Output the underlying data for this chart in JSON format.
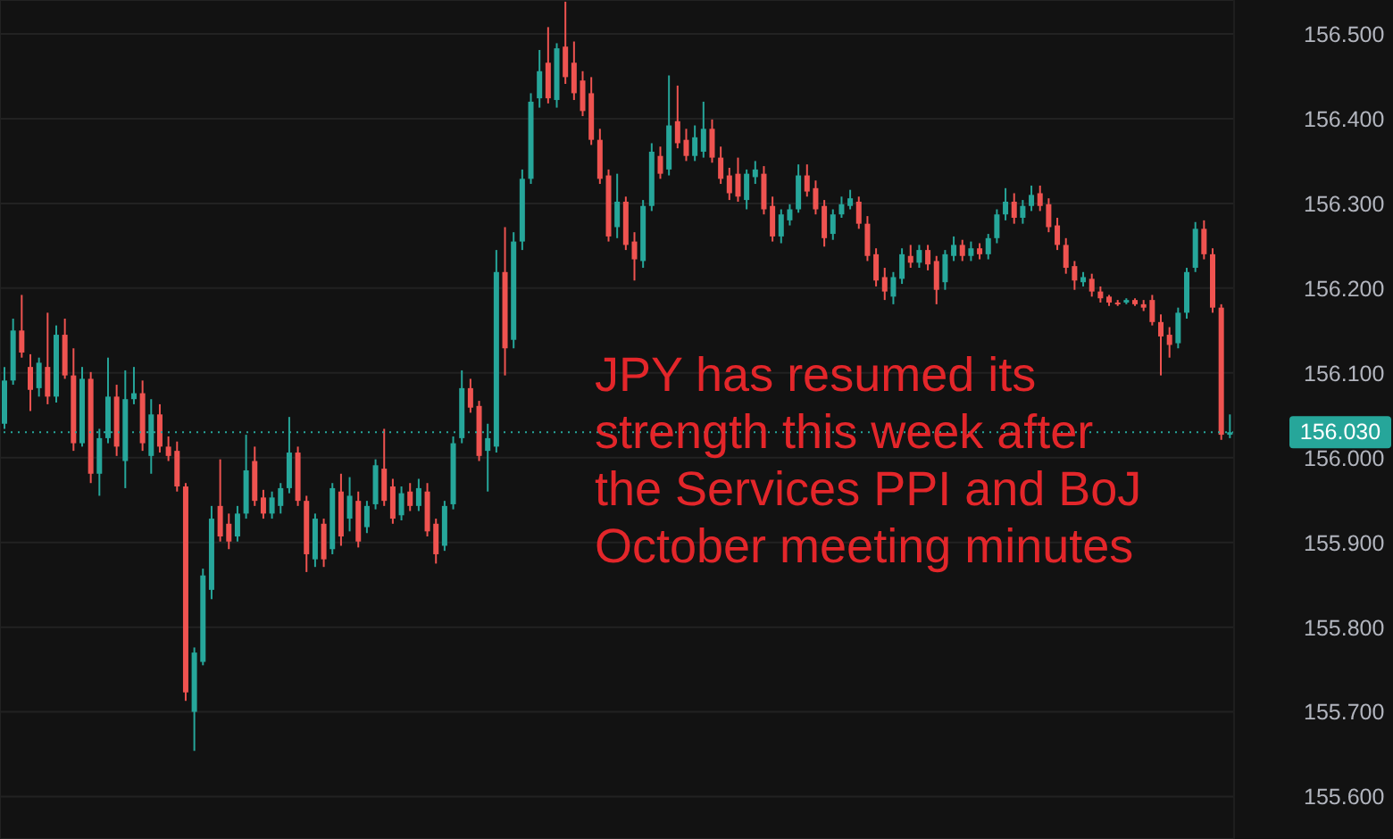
{
  "chart_data": {
    "type": "candlestick",
    "categories": [
      null,
      null,
      null,
      null,
      null,
      null,
      null,
      null,
      null,
      null,
      null,
      null,
      null,
      null,
      null,
      null,
      null,
      null,
      null,
      null,
      null,
      null,
      null,
      null,
      null,
      null,
      null,
      null,
      null,
      null,
      null,
      null,
      null,
      null,
      null,
      null,
      null,
      null,
      null,
      null,
      null,
      null,
      null,
      null,
      null,
      null,
      null,
      null,
      null,
      null,
      null,
      null,
      null,
      null,
      null,
      null,
      null,
      null,
      null,
      null,
      null,
      null,
      null,
      null,
      null,
      null,
      null,
      null,
      null,
      null,
      null,
      null,
      null,
      null,
      null,
      null,
      null,
      null,
      null,
      null,
      null,
      null,
      null,
      null,
      null,
      null,
      null,
      null,
      null,
      null,
      null,
      null,
      null,
      null,
      null,
      null,
      null,
      null,
      null,
      null,
      null,
      null,
      null,
      null,
      null,
      null,
      null,
      null,
      null,
      null,
      null,
      null,
      null,
      null,
      null,
      null,
      null,
      null,
      null,
      null,
      null,
      null,
      null,
      null,
      null,
      null,
      null,
      null,
      null,
      null,
      null,
      null,
      null,
      null,
      null,
      null,
      null,
      null,
      null,
      null,
      null,
      null,
      null
    ],
    "ohlc": [
      [
        156.04,
        156.107,
        156.034,
        156.091
      ],
      [
        156.091,
        156.164,
        156.086,
        156.15
      ],
      [
        156.15,
        156.192,
        156.118,
        156.124
      ],
      [
        156.107,
        156.122,
        156.055,
        156.08
      ],
      [
        156.082,
        156.118,
        156.072,
        156.112
      ],
      [
        156.107,
        156.171,
        156.063,
        156.072
      ],
      [
        156.072,
        156.156,
        156.065,
        156.145
      ],
      [
        156.145,
        156.164,
        156.093,
        156.097
      ],
      [
        156.097,
        156.129,
        156.008,
        156.017
      ],
      [
        156.017,
        156.107,
        156.013,
        156.093
      ],
      [
        156.093,
        156.101,
        155.97,
        155.981
      ],
      [
        155.981,
        156.034,
        155.955,
        156.023
      ],
      [
        156.023,
        156.118,
        156.017,
        156.072
      ],
      [
        156.072,
        156.086,
        156.002,
        156.013
      ],
      [
        155.996,
        156.103,
        155.964,
        156.069
      ],
      [
        156.069,
        156.107,
        156.063,
        156.076
      ],
      [
        156.076,
        156.091,
        156.008,
        156.017
      ],
      [
        156.002,
        156.069,
        155.981,
        156.051
      ],
      [
        156.051,
        156.063,
        156.006,
        156.013
      ],
      [
        156.013,
        156.025,
        155.996,
        156.002
      ],
      [
        156.008,
        156.019,
        155.96,
        155.966
      ],
      [
        155.966,
        155.97,
        155.713,
        155.723
      ],
      [
        155.7,
        155.776,
        155.654,
        155.77
      ],
      [
        155.759,
        155.869,
        155.755,
        155.861
      ],
      [
        155.844,
        155.943,
        155.833,
        155.928
      ],
      [
        155.943,
        155.998,
        155.901,
        155.907
      ],
      [
        155.922,
        155.934,
        155.892,
        155.901
      ],
      [
        155.907,
        155.943,
        155.901,
        155.934
      ],
      [
        155.934,
        156.027,
        155.928,
        155.985
      ],
      [
        155.996,
        156.013,
        155.943,
        155.949
      ],
      [
        155.953,
        155.962,
        155.928,
        155.934
      ],
      [
        155.934,
        155.96,
        155.928,
        155.953
      ],
      [
        155.943,
        155.97,
        155.934,
        155.964
      ],
      [
        155.964,
        156.048,
        155.958,
        156.006
      ],
      [
        156.006,
        156.013,
        155.943,
        155.949
      ],
      [
        155.949,
        155.955,
        155.865,
        155.886
      ],
      [
        155.88,
        155.934,
        155.871,
        155.928
      ],
      [
        155.922,
        155.928,
        155.871,
        155.88
      ],
      [
        155.892,
        155.97,
        155.886,
        155.964
      ],
      [
        155.96,
        155.981,
        155.896,
        155.907
      ],
      [
        155.928,
        155.977,
        155.913,
        155.955
      ],
      [
        155.949,
        155.96,
        155.894,
        155.901
      ],
      [
        155.918,
        155.949,
        155.911,
        155.943
      ],
      [
        155.945,
        155.998,
        155.939,
        155.991
      ],
      [
        155.987,
        156.034,
        155.943,
        155.949
      ],
      [
        155.966,
        155.975,
        155.922,
        155.928
      ],
      [
        155.932,
        155.966,
        155.926,
        155.958
      ],
      [
        155.96,
        155.97,
        155.937,
        155.943
      ],
      [
        155.943,
        155.975,
        155.937,
        155.964
      ],
      [
        155.96,
        155.97,
        155.907,
        155.913
      ],
      [
        155.922,
        155.928,
        155.875,
        155.886
      ],
      [
        155.896,
        155.949,
        155.89,
        155.943
      ],
      [
        155.945,
        156.025,
        155.939,
        156.017
      ],
      [
        156.023,
        156.103,
        156.017,
        156.082
      ],
      [
        156.082,
        156.093,
        156.053,
        156.059
      ],
      [
        156.061,
        156.067,
        155.996,
        156.002
      ],
      [
        156.008,
        156.04,
        155.96,
        156.023
      ],
      [
        156.013,
        156.245,
        156.006,
        156.219
      ],
      [
        156.219,
        156.272,
        156.097,
        156.129
      ],
      [
        156.139,
        156.266,
        156.129,
        156.255
      ],
      [
        156.255,
        156.34,
        156.245,
        156.329
      ],
      [
        156.329,
        156.43,
        156.323,
        156.42
      ],
      [
        156.424,
        156.481,
        156.413,
        156.456
      ],
      [
        156.466,
        156.508,
        156.418,
        156.424
      ],
      [
        156.422,
        156.489,
        156.413,
        156.483
      ],
      [
        156.485,
        156.538,
        156.441,
        156.449
      ],
      [
        156.466,
        156.491,
        156.422,
        156.43
      ],
      [
        156.445,
        156.456,
        156.403,
        156.409
      ],
      [
        156.43,
        156.449,
        156.369,
        156.375
      ],
      [
        156.375,
        156.388,
        156.323,
        156.329
      ],
      [
        156.333,
        156.34,
        156.255,
        156.261
      ],
      [
        156.272,
        156.335,
        156.259,
        156.302
      ],
      [
        156.302,
        156.308,
        156.245,
        156.251
      ],
      [
        156.255,
        156.266,
        156.209,
        156.234
      ],
      [
        156.232,
        156.304,
        156.224,
        156.297
      ],
      [
        156.297,
        156.371,
        156.291,
        156.361
      ],
      [
        156.356,
        156.367,
        156.329,
        156.335
      ],
      [
        156.34,
        156.451,
        156.333,
        156.392
      ],
      [
        156.397,
        156.439,
        156.365,
        156.371
      ],
      [
        156.375,
        156.388,
        156.35,
        156.356
      ],
      [
        156.356,
        156.392,
        156.35,
        156.378
      ],
      [
        156.361,
        156.42,
        156.354,
        156.388
      ],
      [
        156.388,
        156.399,
        156.348,
        156.354
      ],
      [
        156.354,
        156.367,
        156.323,
        156.329
      ],
      [
        156.333,
        156.342,
        156.304,
        156.312
      ],
      [
        156.335,
        156.354,
        156.302,
        156.308
      ],
      [
        156.304,
        156.34,
        156.293,
        156.335
      ],
      [
        156.331,
        156.35,
        156.323,
        156.34
      ],
      [
        156.335,
        156.344,
        156.287,
        156.293
      ],
      [
        156.297,
        156.308,
        156.255,
        156.261
      ],
      [
        156.261,
        156.293,
        156.253,
        156.287
      ],
      [
        156.28,
        156.299,
        156.274,
        156.293
      ],
      [
        156.293,
        156.346,
        156.289,
        156.333
      ],
      [
        156.333,
        156.346,
        156.308,
        156.314
      ],
      [
        156.318,
        156.327,
        156.287,
        156.293
      ],
      [
        156.297,
        156.304,
        156.249,
        156.259
      ],
      [
        156.264,
        156.293,
        156.257,
        156.287
      ],
      [
        156.287,
        156.308,
        156.283,
        156.299
      ],
      [
        156.297,
        156.316,
        156.293,
        156.306
      ],
      [
        156.302,
        156.308,
        156.27,
        156.276
      ],
      [
        156.276,
        156.285,
        156.232,
        156.238
      ],
      [
        156.24,
        156.247,
        156.202,
        156.209
      ],
      [
        156.213,
        156.224,
        156.186,
        156.196
      ],
      [
        156.19,
        156.219,
        156.181,
        156.213
      ],
      [
        156.211,
        156.247,
        156.205,
        156.24
      ],
      [
        156.238,
        156.251,
        156.224,
        156.23
      ],
      [
        156.23,
        156.251,
        156.224,
        156.245
      ],
      [
        156.245,
        156.251,
        156.221,
        156.228
      ],
      [
        156.232,
        156.238,
        156.181,
        156.198
      ],
      [
        156.207,
        156.245,
        156.198,
        156.24
      ],
      [
        156.238,
        156.261,
        156.232,
        156.251
      ],
      [
        156.251,
        156.257,
        156.232,
        156.238
      ],
      [
        156.238,
        156.255,
        156.232,
        156.247
      ],
      [
        156.247,
        156.253,
        156.234,
        156.24
      ],
      [
        156.24,
        156.264,
        156.234,
        156.259
      ],
      [
        156.259,
        156.293,
        156.253,
        156.287
      ],
      [
        156.287,
        156.318,
        156.28,
        156.302
      ],
      [
        156.302,
        156.312,
        156.276,
        156.283
      ],
      [
        156.283,
        156.304,
        156.276,
        156.297
      ],
      [
        156.297,
        156.321,
        156.291,
        156.31
      ],
      [
        156.312,
        156.321,
        156.291,
        156.297
      ],
      [
        156.299,
        156.306,
        156.266,
        156.272
      ],
      [
        156.274,
        156.283,
        156.245,
        156.251
      ],
      [
        156.251,
        156.259,
        156.217,
        156.224
      ],
      [
        156.226,
        156.232,
        156.198,
        156.209
      ],
      [
        156.207,
        156.219,
        156.202,
        156.213
      ],
      [
        156.211,
        156.217,
        156.19,
        156.196
      ],
      [
        156.196,
        156.202,
        156.183,
        156.188
      ],
      [
        156.19,
        156.192,
        156.179,
        156.183
      ],
      [
        156.183,
        156.186,
        156.179,
        156.183
      ],
      [
        156.183,
        156.188,
        156.181,
        156.186
      ],
      [
        156.186,
        156.188,
        156.179,
        156.181
      ],
      [
        156.181,
        156.186,
        156.173,
        156.177
      ],
      [
        156.186,
        156.192,
        156.156,
        156.16
      ],
      [
        156.16,
        156.169,
        156.097,
        156.143
      ],
      [
        156.145,
        156.154,
        156.118,
        156.133
      ],
      [
        156.135,
        156.177,
        156.129,
        156.171
      ],
      [
        156.171,
        156.224,
        156.164,
        156.219
      ],
      [
        156.224,
        156.278,
        156.219,
        156.27
      ],
      [
        156.27,
        156.28,
        156.234,
        156.24
      ],
      [
        156.24,
        156.247,
        156.171,
        156.177
      ],
      [
        156.177,
        156.181,
        156.021,
        156.027
      ],
      [
        156.027,
        156.051,
        156.023,
        156.03
      ]
    ],
    "colors": [
      "#26a69a",
      "#26a69a",
      "#ef5350",
      "#ef5350",
      "#26a69a",
      "#ef5350",
      "#26a69a",
      "#ef5350",
      "#ef5350",
      "#26a69a",
      "#ef5350",
      "#26a69a",
      "#26a69a",
      "#ef5350",
      "#26a69a",
      "#26a69a",
      "#ef5350",
      "#26a69a",
      "#ef5350",
      "#ef5350",
      "#ef5350",
      "#ef5350",
      "#26a69a",
      "#26a69a",
      "#26a69a",
      "#ef5350",
      "#ef5350",
      "#26a69a",
      "#26a69a",
      "#ef5350",
      "#ef5350",
      "#26a69a",
      "#26a69a",
      "#26a69a",
      "#ef5350",
      "#ef5350",
      "#26a69a",
      "#ef5350",
      "#26a69a",
      "#ef5350",
      "#26a69a",
      "#ef5350",
      "#26a69a",
      "#26a69a",
      "#ef5350",
      "#ef5350",
      "#26a69a",
      "#ef5350",
      "#26a69a",
      "#ef5350",
      "#ef5350",
      "#26a69a",
      "#26a69a",
      "#26a69a",
      "#ef5350",
      "#ef5350",
      "#26a69a",
      "#26a69a",
      "#ef5350",
      "#26a69a",
      "#26a69a",
      "#26a69a",
      "#26a69a",
      "#ef5350",
      "#26a69a",
      "#ef5350",
      "#ef5350",
      "#ef5350",
      "#ef5350",
      "#ef5350",
      "#ef5350",
      "#26a69a",
      "#ef5350",
      "#ef5350",
      "#26a69a",
      "#26a69a",
      "#ef5350",
      "#26a69a",
      "#ef5350",
      "#ef5350",
      "#26a69a",
      "#26a69a",
      "#ef5350",
      "#ef5350",
      "#ef5350",
      "#ef5350",
      "#26a69a",
      "#26a69a",
      "#ef5350",
      "#ef5350",
      "#26a69a",
      "#26a69a",
      "#26a69a",
      "#ef5350",
      "#ef5350",
      "#ef5350",
      "#26a69a",
      "#26a69a",
      "#26a69a",
      "#ef5350",
      "#ef5350",
      "#ef5350",
      "#ef5350",
      "#26a69a",
      "#26a69a",
      "#ef5350",
      "#26a69a",
      "#ef5350",
      "#ef5350",
      "#26a69a",
      "#26a69a",
      "#ef5350",
      "#26a69a",
      "#ef5350",
      "#26a69a",
      "#26a69a",
      "#26a69a",
      "#ef5350",
      "#26a69a",
      "#26a69a",
      "#ef5350",
      "#ef5350",
      "#ef5350",
      "#ef5350",
      "#ef5350",
      "#26a69a",
      "#ef5350",
      "#ef5350",
      "#ef5350",
      "#ef5350",
      "#26a69a",
      "#ef5350",
      "#ef5350",
      "#ef5350",
      "#ef5350",
      "#ef5350",
      "#26a69a",
      "#26a69a",
      "#26a69a",
      "#ef5350",
      "#ef5350",
      "#ef5350",
      "#26a69a"
    ],
    "ylim": [
      155.55,
      156.54
    ],
    "yticks": [
      {
        "value": 155.6,
        "label": "155.600"
      },
      {
        "value": 155.7,
        "label": "155.700"
      },
      {
        "value": 155.8,
        "label": "155.800"
      },
      {
        "value": 155.9,
        "label": "155.900"
      },
      {
        "value": 156.0,
        "label": "156.000"
      },
      {
        "value": 156.1,
        "label": "156.100"
      },
      {
        "value": 156.2,
        "label": "156.200"
      },
      {
        "value": 156.3,
        "label": "156.300"
      },
      {
        "value": 156.4,
        "label": "156.400"
      },
      {
        "value": 156.5,
        "label": "156.500"
      }
    ],
    "tick_labels": "y",
    "grid": true,
    "ref_lines": [
      {
        "axis": "y",
        "value": 156.03,
        "label": "156.030",
        "color": "#26a69a",
        "line_style": "dotted"
      }
    ],
    "annotations": [
      "JPY has resumed its strength this week after the Services PPI and BoJ October meeting minutes"
    ]
  }
}
